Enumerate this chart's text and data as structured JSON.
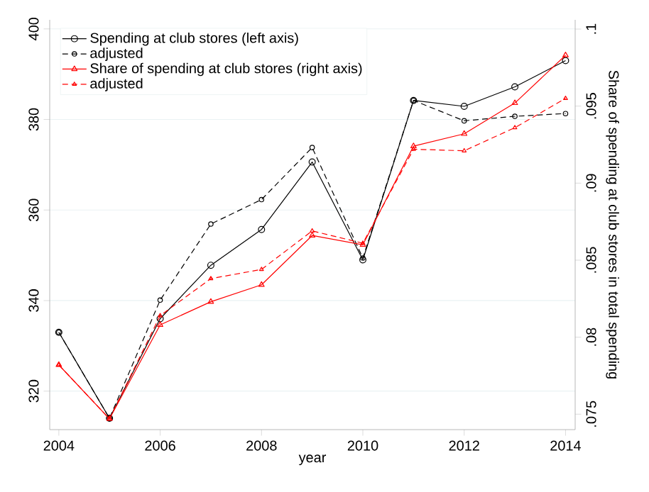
{
  "chart_data": {
    "type": "line",
    "xlabel": "year",
    "y2label": "Share of spending at club stores in total spending",
    "x": [
      2004,
      2005,
      2006,
      2007,
      2008,
      2009,
      2010,
      2011,
      2012,
      2013,
      2014
    ],
    "xlim": [
      2003.82,
      2014.19
    ],
    "xticks": [
      2004,
      2006,
      2008,
      2010,
      2012,
      2014
    ],
    "ylim": [
      311.5,
      402
    ],
    "yticks": [
      320,
      340,
      360,
      380,
      400
    ],
    "y2lim": [
      0.074,
      0.1006
    ],
    "y2ticks": [
      {
        "value": 0.075,
        "label": ".075"
      },
      {
        "value": 0.08,
        "label": ".08"
      },
      {
        "value": 0.085,
        "label": ".085"
      },
      {
        "value": 0.09,
        "label": ".09"
      },
      {
        "value": 0.095,
        "label": ".095"
      },
      {
        "value": 0.1,
        "label": ".1"
      }
    ],
    "grid": "y",
    "legend": "top left",
    "series": [
      {
        "name": "Spending at club stores (left axis)",
        "color": "#000000",
        "line_style": "solid",
        "marker": "circle",
        "values": [
          333,
          314,
          336,
          347.8,
          355.7,
          370.6,
          349,
          384.2,
          382.9,
          387.2,
          393
        ]
      },
      {
        "name": "adjusted",
        "color": "#000000",
        "line_style": "dashed",
        "marker": "circle",
        "values": [
          333,
          314,
          340.1,
          356.9,
          362.3,
          373.8,
          349.4,
          384.2,
          379.7,
          380.7,
          381.3
        ]
      },
      {
        "name": "Share of spending at club stores (right axis)",
        "color": "#ff0000",
        "line_style": "solid",
        "marker": "triangle",
        "axis": "y2",
        "values": [
          0.0782,
          0.0747,
          0.0808,
          0.0823,
          0.0834,
          0.0866,
          0.086,
          0.0924,
          0.0932,
          0.0952,
          0.0983
        ]
      },
      {
        "name": "adjusted",
        "color": "#ff0000",
        "line_style": "dashed",
        "marker": "triangle",
        "axis": "y2",
        "values": [
          0.0782,
          0.0747,
          0.0814,
          0.0838,
          0.0844,
          0.0869,
          0.0861,
          0.0922,
          0.0921,
          0.0936,
          0.0955
        ]
      }
    ]
  }
}
